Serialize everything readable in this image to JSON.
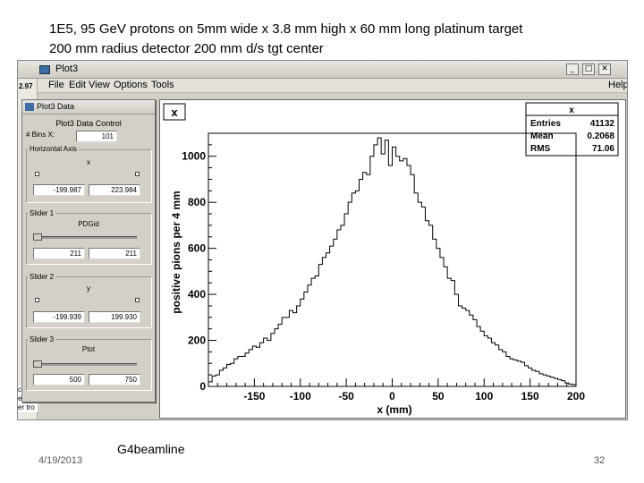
{
  "slide": {
    "title_line1": "1E5, 95 GeV protons on 5mm wide x 3.8 mm high x 60 mm long platinum target",
    "title_line2": "200 mm radius detector 200 mm d/s tgt center",
    "footer_date": "4/19/2013",
    "footer_label": "G4beamline",
    "page_number": "32"
  },
  "plot_window": {
    "title": "Plot3",
    "left_strip_text": "2.97",
    "bottom_left_text": [
      "ction",
      "e",
      "er tro"
    ],
    "menu": [
      "File",
      "Edit",
      "View",
      "Options",
      "Tools"
    ],
    "menu_help": "Help",
    "buttons": {
      "minimize": "_",
      "maximize": "□",
      "close": "✕"
    }
  },
  "control_panel": {
    "window_title": "Plot3 Data",
    "heading": "Plot3 Data Control",
    "bins_label": "# Bins X:",
    "bins_value": "101",
    "horizontal_group": "Horizontal Axis",
    "horizontal_var": "x",
    "horizontal_min": "-199.987",
    "horizontal_max": "223.984",
    "slider1_group": "Slider 1",
    "slider1_var": "PDGid",
    "slider1_min": "211",
    "slider1_max": "211",
    "slider2_group": "Slider 2",
    "slider2_var": "y",
    "slider2_min": "-199.939",
    "slider2_max": "199.930",
    "slider3_group": "Slider 3",
    "slider3_var": "Ptot",
    "slider3_min": "500",
    "slider3_max": "750"
  },
  "chart_data": {
    "type": "line",
    "title": "x",
    "xlabel": "x (mm)",
    "ylabel": "positive pions per 4 mm",
    "xlim": [
      -200,
      200
    ],
    "ylim": [
      0,
      1100
    ],
    "xticks": [
      -150,
      -100,
      -50,
      0,
      50,
      100,
      150,
      200
    ],
    "yticks": [
      0,
      200,
      400,
      600,
      800,
      1000
    ],
    "grid": false,
    "style": "step",
    "stats": {
      "title": "x",
      "entries_label": "Entries",
      "entries": "41132",
      "mean_label": "Mean",
      "mean": "0.2068",
      "rms_label": "RMS",
      "rms": "71.06"
    },
    "x": [
      -198,
      -194,
      -190,
      -186,
      -182,
      -178,
      -174,
      -170,
      -166,
      -162,
      -158,
      -154,
      -150,
      -146,
      -142,
      -138,
      -134,
      -130,
      -126,
      -122,
      -118,
      -114,
      -110,
      -106,
      -102,
      -98,
      -94,
      -90,
      -86,
      -82,
      -78,
      -74,
      -70,
      -66,
      -62,
      -58,
      -54,
      -50,
      -46,
      -42,
      -38,
      -34,
      -30,
      -26,
      -22,
      -18,
      -14,
      -10,
      -6,
      -2,
      2,
      6,
      10,
      14,
      18,
      22,
      26,
      30,
      34,
      38,
      42,
      46,
      50,
      54,
      58,
      62,
      66,
      70,
      74,
      78,
      82,
      86,
      90,
      94,
      98,
      102,
      106,
      110,
      114,
      118,
      122,
      126,
      130,
      134,
      138,
      142,
      146,
      150,
      154,
      158,
      162,
      166,
      170,
      174,
      178,
      182,
      186,
      190,
      194,
      198
    ],
    "values": [
      20,
      45,
      50,
      70,
      80,
      95,
      100,
      120,
      130,
      130,
      145,
      160,
      175,
      170,
      190,
      210,
      200,
      230,
      250,
      270,
      300,
      300,
      330,
      320,
      350,
      380,
      410,
      440,
      470,
      480,
      530,
      560,
      580,
      610,
      640,
      680,
      700,
      750,
      800,
      840,
      850,
      900,
      930,
      920,
      1000,
      1050,
      1080,
      1010,
      1070,
      960,
      1040,
      1000,
      980,
      990,
      960,
      920,
      840,
      800,
      780,
      720,
      700,
      640,
      600,
      560,
      520,
      470,
      460,
      400,
      350,
      340,
      330,
      310,
      290,
      260,
      240,
      220,
      210,
      190,
      180,
      160,
      150,
      130,
      120,
      115,
      110,
      105,
      90,
      80,
      70,
      65,
      55,
      50,
      45,
      40,
      35,
      30,
      25,
      15,
      10,
      8
    ]
  }
}
